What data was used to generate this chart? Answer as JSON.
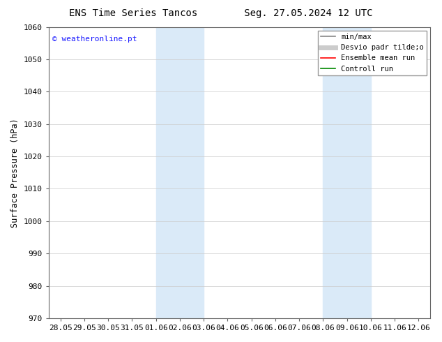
{
  "title_left": "ENS Time Series Tancos",
  "title_right": "Seg. 27.05.2024 12 UTC",
  "ylabel": "Surface Pressure (hPa)",
  "ylim": [
    970,
    1060
  ],
  "yticks": [
    970,
    980,
    990,
    1000,
    1010,
    1020,
    1030,
    1040,
    1050,
    1060
  ],
  "x_labels": [
    "28.05",
    "29.05",
    "30.05",
    "31.05",
    "01.06",
    "02.06",
    "03.06",
    "04.06",
    "05.06",
    "06.06",
    "07.06",
    "08.06",
    "09.06",
    "10.06",
    "11.06",
    "12.06"
  ],
  "x_positions": [
    0,
    1,
    2,
    3,
    4,
    5,
    6,
    7,
    8,
    9,
    10,
    11,
    12,
    13,
    14,
    15
  ],
  "shade_bands": [
    {
      "xmin": 4.0,
      "xmax": 5.0
    },
    {
      "xmin": 5.0,
      "xmax": 6.0
    },
    {
      "xmin": 11.0,
      "xmax": 12.0
    },
    {
      "xmin": 12.0,
      "xmax": 13.0
    }
  ],
  "shade_color": "#daeaf8",
  "watermark": "© weatheronline.pt",
  "watermark_color": "#1a1aff",
  "bg_color": "#ffffff",
  "plot_bg_color": "#ffffff",
  "grid_color": "#cccccc",
  "legend_items": [
    {
      "label": "min/max",
      "color": "#888888",
      "lw": 1.2
    },
    {
      "label": "Desvio padr tilde;o",
      "color": "#cccccc",
      "lw": 5
    },
    {
      "label": "Ensemble mean run",
      "color": "#ff0000",
      "lw": 1.2
    },
    {
      "label": "Controll run",
      "color": "#008800",
      "lw": 1.2
    }
  ],
  "font_size_title": 10,
  "font_size_tick": 8,
  "font_size_legend": 7.5,
  "font_size_ylabel": 8.5,
  "font_size_watermark": 8
}
